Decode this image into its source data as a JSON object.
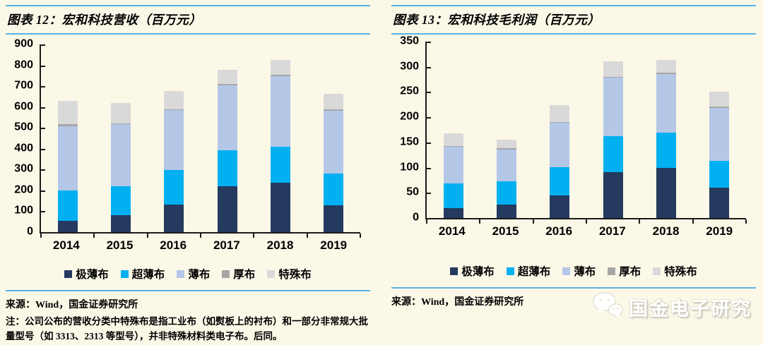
{
  "page": {
    "background": "#FCF8E8",
    "accent_line_color": "#56B2E3"
  },
  "panels": [
    {
      "title": "图表 12：宏和科技营收（百万元）",
      "source": "来源：Wind，国金证券研究所",
      "note": "注：公司公布的营收分类中特殊布是指工业布（如熨板上的衬布）和一部分非常规大批量型号（如 3313、2313 等型号），并非特殊材料类电子布。后同。"
    },
    {
      "title": "图表 13：宏和科技毛利润（百万元）",
      "source": "来源：Wind，国金证券研究所",
      "logo_text": "国金电子研究"
    }
  ],
  "chart_data": [
    {
      "type": "bar",
      "stacked": true,
      "title": "宏和科技营收（百万元）",
      "categories": [
        "2014",
        "2015",
        "2016",
        "2017",
        "2018",
        "2019"
      ],
      "series": [
        {
          "name": "极薄布",
          "color": "#243A5E",
          "values": [
            54,
            82,
            132,
            219,
            238,
            128
          ]
        },
        {
          "name": "超薄布",
          "color": "#00B0F0",
          "values": [
            145,
            139,
            167,
            172,
            170,
            154
          ]
        },
        {
          "name": "薄布",
          "color": "#B4C7E7",
          "values": [
            310,
            296,
            285,
            312,
            341,
            301
          ]
        },
        {
          "name": "厚布",
          "color": "#A6A6A6",
          "values": [
            10,
            5,
            5,
            6,
            4,
            6
          ]
        },
        {
          "name": "特殊布",
          "color": "#D9D9D9",
          "values": [
            111,
            97,
            87,
            70,
            73,
            73
          ]
        }
      ],
      "totals": [
        630,
        619,
        676,
        779,
        826,
        662
      ],
      "xlabel": "",
      "ylabel": "",
      "ylim": [
        0,
        900
      ],
      "ytick_step": 100,
      "grid": false,
      "legend_position": "bottom"
    },
    {
      "type": "bar",
      "stacked": true,
      "title": "宏和科技毛利润（百万元）",
      "categories": [
        "2014",
        "2015",
        "2016",
        "2017",
        "2018",
        "2019"
      ],
      "series": [
        {
          "name": "极薄布",
          "color": "#243A5E",
          "values": [
            19,
            27,
            45,
            91,
            100,
            60
          ]
        },
        {
          "name": "超薄布",
          "color": "#00B0F0",
          "values": [
            49,
            46,
            56,
            72,
            69,
            54
          ]
        },
        {
          "name": "薄布",
          "color": "#B4C7E7",
          "values": [
            73,
            63,
            88,
            115,
            117,
            104
          ]
        },
        {
          "name": "厚布",
          "color": "#A6A6A6",
          "values": [
            2,
            2,
            2,
            2,
            2,
            3
          ]
        },
        {
          "name": "特殊布",
          "color": "#D9D9D9",
          "values": [
            25,
            18,
            33,
            31,
            26,
            29
          ]
        }
      ],
      "totals": [
        168,
        156,
        224,
        311,
        314,
        250
      ],
      "xlabel": "",
      "ylabel": "",
      "ylim": [
        0,
        350
      ],
      "ytick_step": 50,
      "grid": false,
      "legend_position": "bottom"
    }
  ]
}
